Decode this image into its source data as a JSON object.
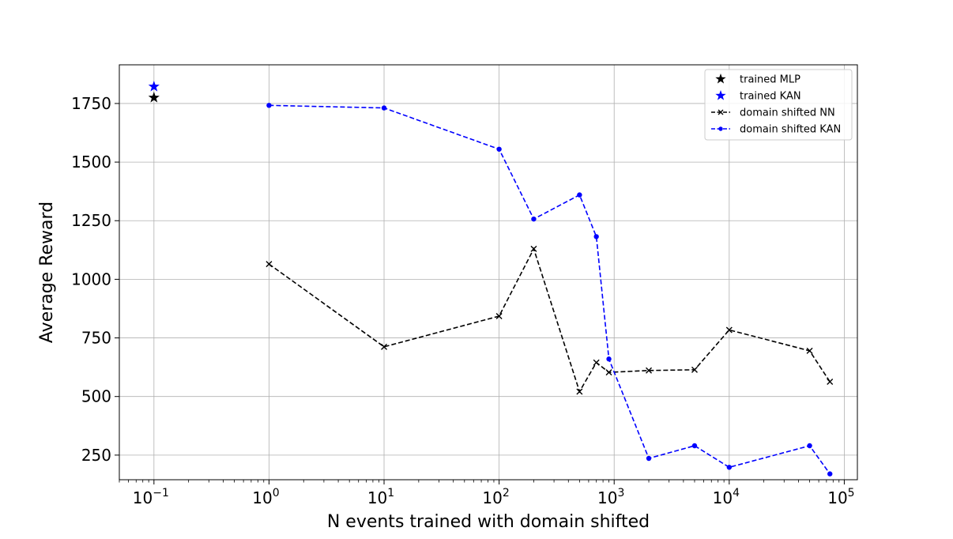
{
  "chart_data": {
    "type": "line",
    "title": "",
    "xlabel": "N events trained with domain shifted",
    "ylabel": "Average Reward",
    "xscale": "log",
    "xlim": [
      0.05,
      130000
    ],
    "ylim": [
      145,
      1915
    ],
    "x_ticks": [
      {
        "value": 0.1,
        "base": "10",
        "exp": "−1"
      },
      {
        "value": 1,
        "base": "10",
        "exp": "0"
      },
      {
        "value": 10,
        "base": "10",
        "exp": "1"
      },
      {
        "value": 100,
        "base": "10",
        "exp": "2"
      },
      {
        "value": 1000,
        "base": "10",
        "exp": "3"
      },
      {
        "value": 10000,
        "base": "10",
        "exp": "4"
      },
      {
        "value": 100000,
        "base": "10",
        "exp": "5"
      }
    ],
    "y_ticks": [
      250,
      500,
      750,
      1000,
      1250,
      1500,
      1750
    ],
    "grid": true,
    "legend_position": "top-right",
    "series": [
      {
        "name": "trained MLP",
        "marker": "star",
        "linestyle": "none",
        "color": "#000000",
        "x": [
          0.1
        ],
        "y": [
          1775
        ]
      },
      {
        "name": "trained KAN",
        "marker": "star",
        "linestyle": "none",
        "color": "#0000ff",
        "x": [
          0.1
        ],
        "y": [
          1822
        ]
      },
      {
        "name": "domain shifted NN",
        "marker": "x",
        "linestyle": "dashed",
        "color": "#000000",
        "x": [
          1,
          10,
          100,
          200,
          500,
          700,
          900,
          2000,
          5000,
          10000,
          50000,
          75000
        ],
        "y": [
          1065,
          712,
          843,
          1130,
          521,
          645,
          603,
          611,
          614,
          784,
          695,
          563
        ]
      },
      {
        "name": "domain shifted KAN",
        "marker": "circle",
        "linestyle": "dashed",
        "color": "#0000ff",
        "x": [
          1,
          10,
          100,
          200,
          500,
          700,
          900,
          2000,
          5000,
          10000,
          50000,
          75000
        ],
        "y": [
          1742,
          1731,
          1555,
          1257,
          1360,
          1182,
          660,
          236,
          290,
          198,
          290,
          170
        ]
      }
    ]
  }
}
